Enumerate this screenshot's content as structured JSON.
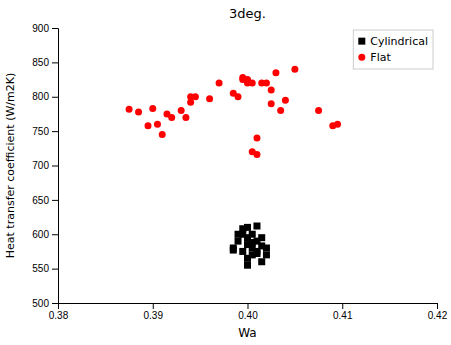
{
  "chart_data": {
    "type": "scatter",
    "title": "3deg.",
    "xlabel": "Wa",
    "ylabel": "Heat transfer coefficient (W/m2K)",
    "xlim": [
      0.38,
      0.42
    ],
    "ylim": [
      500,
      900
    ],
    "xticks": [
      0.38,
      0.39,
      {
        "value": 0.4,
        "label": "0.40"
      },
      0.41,
      0.42
    ],
    "yticks": [
      500,
      550,
      600,
      650,
      700,
      750,
      800,
      850,
      900
    ],
    "legend": "upper right",
    "grid": false,
    "series": [
      {
        "name": "Cylindrical",
        "color": "black",
        "marker": "square",
        "x": [
          0.3985,
          0.399,
          0.3995,
          0.3995,
          0.4,
          0.4,
          0.4,
          0.4,
          0.4005,
          0.4005,
          0.4005,
          0.401,
          0.401,
          0.401,
          0.4015,
          0.4015,
          0.402,
          0.402,
          0.3995,
          0.4005,
          0.399,
          0.401,
          0.4,
          0.3985,
          0.4015
        ],
        "values": [
          580,
          590,
          575,
          600,
          595,
          585,
          610,
          565,
          600,
          580,
          570,
          590,
          612,
          575,
          595,
          560,
          580,
          570,
          608,
          588,
          600,
          572,
          555,
          577,
          583
        ]
      },
      {
        "name": "Flat",
        "color": "red",
        "marker": "circle",
        "x": [
          0.3875,
          0.3885,
          0.3895,
          0.39,
          0.3905,
          0.391,
          0.3915,
          0.392,
          0.393,
          0.3935,
          0.394,
          0.394,
          0.3945,
          0.396,
          0.397,
          0.3985,
          0.399,
          0.3995,
          0.3995,
          0.4,
          0.4,
          0.4005,
          0.4005,
          0.401,
          0.401,
          0.4015,
          0.402,
          0.4025,
          0.4025,
          0.403,
          0.4035,
          0.404,
          0.405,
          0.4075,
          0.409,
          0.4095
        ],
        "values": [
          782,
          778,
          758,
          783,
          760,
          745,
          775,
          770,
          780,
          770,
          792,
          800,
          800,
          797,
          820,
          805,
          800,
          828,
          825,
          825,
          820,
          720,
          820,
          716,
          740,
          820,
          820,
          810,
          790,
          835,
          780,
          795,
          840,
          780,
          758,
          760
        ]
      }
    ]
  }
}
